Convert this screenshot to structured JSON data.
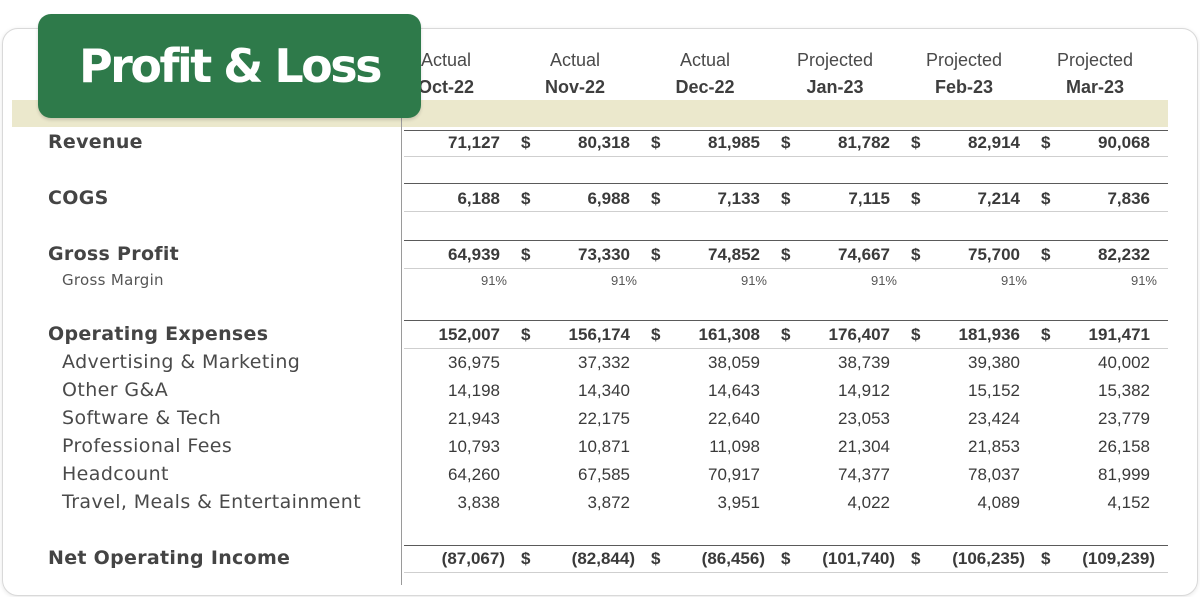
{
  "title": "Profit & Loss",
  "currency_symbol": "$",
  "colors": {
    "badge": "#2e7a4a",
    "header_band": "#ebe8cc"
  },
  "columns": [
    {
      "kind": "Actual",
      "period": "Oct-22"
    },
    {
      "kind": "Actual",
      "period": "Nov-22"
    },
    {
      "kind": "Actual",
      "period": "Dec-22"
    },
    {
      "kind": "Projected",
      "period": "Jan-23"
    },
    {
      "kind": "Projected",
      "period": "Feb-23"
    },
    {
      "kind": "Projected",
      "period": "Mar-23"
    }
  ],
  "rows": {
    "revenue": {
      "label": "Revenue",
      "values": [
        "71,127",
        "80,318",
        "81,985",
        "81,782",
        "82,914",
        "90,068"
      ]
    },
    "cogs": {
      "label": "COGS",
      "values": [
        "6,188",
        "6,988",
        "7,133",
        "7,115",
        "7,214",
        "7,836"
      ]
    },
    "gross_profit": {
      "label": "Gross Profit",
      "values": [
        "64,939",
        "73,330",
        "74,852",
        "74,667",
        "75,700",
        "82,232"
      ]
    },
    "gross_margin": {
      "label": "Gross Margin",
      "values": [
        "91%",
        "91%",
        "91%",
        "91%",
        "91%",
        "91%"
      ]
    },
    "operating_expenses": {
      "label": "Operating Expenses",
      "values": [
        "152,007",
        "156,174",
        "161,308",
        "176,407",
        "181,936",
        "191,471"
      ]
    },
    "advertising": {
      "label": "Advertising & Marketing",
      "values": [
        "36,975",
        "37,332",
        "38,059",
        "38,739",
        "39,380",
        "40,002"
      ]
    },
    "other_ga": {
      "label": "Other G&A",
      "values": [
        "14,198",
        "14,340",
        "14,643",
        "14,912",
        "15,152",
        "15,382"
      ]
    },
    "software": {
      "label": "Software & Tech",
      "values": [
        "21,943",
        "22,175",
        "22,640",
        "23,053",
        "23,424",
        "23,779"
      ]
    },
    "professional_fees": {
      "label": "Professional Fees",
      "values": [
        "10,793",
        "10,871",
        "11,098",
        "21,304",
        "21,853",
        "26,158"
      ]
    },
    "headcount": {
      "label": "Headcount",
      "values": [
        "64,260",
        "67,585",
        "70,917",
        "74,377",
        "78,037",
        "81,999"
      ]
    },
    "travel": {
      "label": "Travel, Meals & Entertainment",
      "values": [
        "3,838",
        "3,872",
        "3,951",
        "4,022",
        "4,089",
        "4,152"
      ]
    },
    "net_operating_income": {
      "label": "Net Operating Income",
      "values": [
        "(87,067)",
        "(82,844)",
        "(86,456)",
        "(101,740)",
        "(106,235)",
        "(109,239)"
      ]
    }
  }
}
